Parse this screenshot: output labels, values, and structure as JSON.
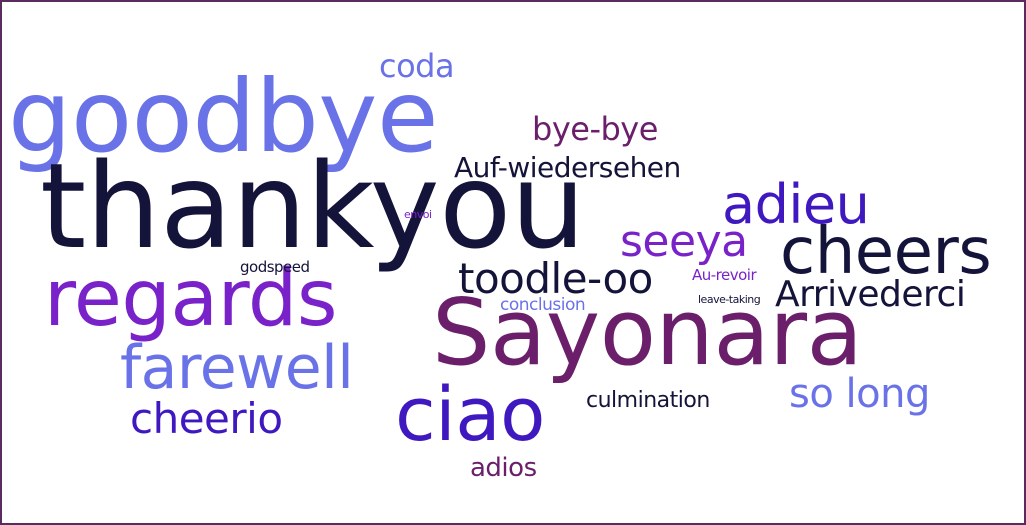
{
  "word_cloud": {
    "words": [
      {
        "id": "goodbye",
        "text": "goodbye",
        "color": "#6a72e8"
      },
      {
        "id": "thankyou",
        "text": "thankyou",
        "color": "#14133a"
      },
      {
        "id": "regards",
        "text": "regards",
        "color": "#7a22c9"
      },
      {
        "id": "farewell",
        "text": "farewell",
        "color": "#6a72e8"
      },
      {
        "id": "cheerio",
        "text": "cheerio",
        "color": "#3f19bf"
      },
      {
        "id": "ciao",
        "text": "ciao",
        "color": "#3f19bf"
      },
      {
        "id": "adios",
        "text": "adios",
        "color": "#6b1f6b"
      },
      {
        "id": "sayonara",
        "text": "Sayonara",
        "color": "#6b1f6b"
      },
      {
        "id": "coda",
        "text": "coda",
        "color": "#6a72e8"
      },
      {
        "id": "byebye",
        "text": "bye-bye",
        "color": "#6b1f6b"
      },
      {
        "id": "auf",
        "text": "Auf-wiedersehen",
        "color": "#14133a"
      },
      {
        "id": "adieu",
        "text": "adieu",
        "color": "#3f19bf"
      },
      {
        "id": "seeya",
        "text": "seeya",
        "color": "#7a22c9"
      },
      {
        "id": "cheers",
        "text": "cheers",
        "color": "#14133a"
      },
      {
        "id": "toodle",
        "text": "toodle-oo",
        "color": "#14133a"
      },
      {
        "id": "envoi",
        "text": "envoi",
        "color": "#7a22c9"
      },
      {
        "id": "godspeed",
        "text": "godspeed",
        "color": "#14133a"
      },
      {
        "id": "aurevoir",
        "text": "Au-revoir",
        "color": "#7a22c9"
      },
      {
        "id": "conclusion",
        "text": "conclusion",
        "color": "#6a72e8"
      },
      {
        "id": "leave",
        "text": "leave-taking",
        "color": "#14133a"
      },
      {
        "id": "arrive",
        "text": "Arrivederci",
        "color": "#14133a"
      },
      {
        "id": "solong",
        "text": "so long",
        "color": "#6a72e8"
      },
      {
        "id": "culm",
        "text": "culmination",
        "color": "#14133a"
      }
    ]
  }
}
